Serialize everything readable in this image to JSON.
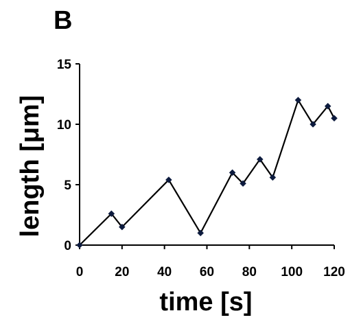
{
  "panel_label": "B",
  "chart_data": {
    "type": "line",
    "title": "",
    "xlabel": "time [s]",
    "ylabel": "length [μm]",
    "xlim": [
      0,
      120
    ],
    "ylim": [
      0,
      15
    ],
    "xticks": [
      0,
      20,
      40,
      60,
      80,
      100,
      120
    ],
    "yticks": [
      0,
      5,
      10,
      15
    ],
    "grid": false,
    "legend": "none",
    "series": [
      {
        "color": "#0d1b3e",
        "marker": "diamond",
        "x": [
          0,
          15,
          20,
          42,
          57,
          72,
          77,
          85,
          91,
          103,
          110,
          117,
          120
        ],
        "y": [
          0,
          2.6,
          1.5,
          5.4,
          1.0,
          6.0,
          5.1,
          7.1,
          5.6,
          12.0,
          10.0,
          11.5,
          10.5
        ]
      }
    ]
  }
}
